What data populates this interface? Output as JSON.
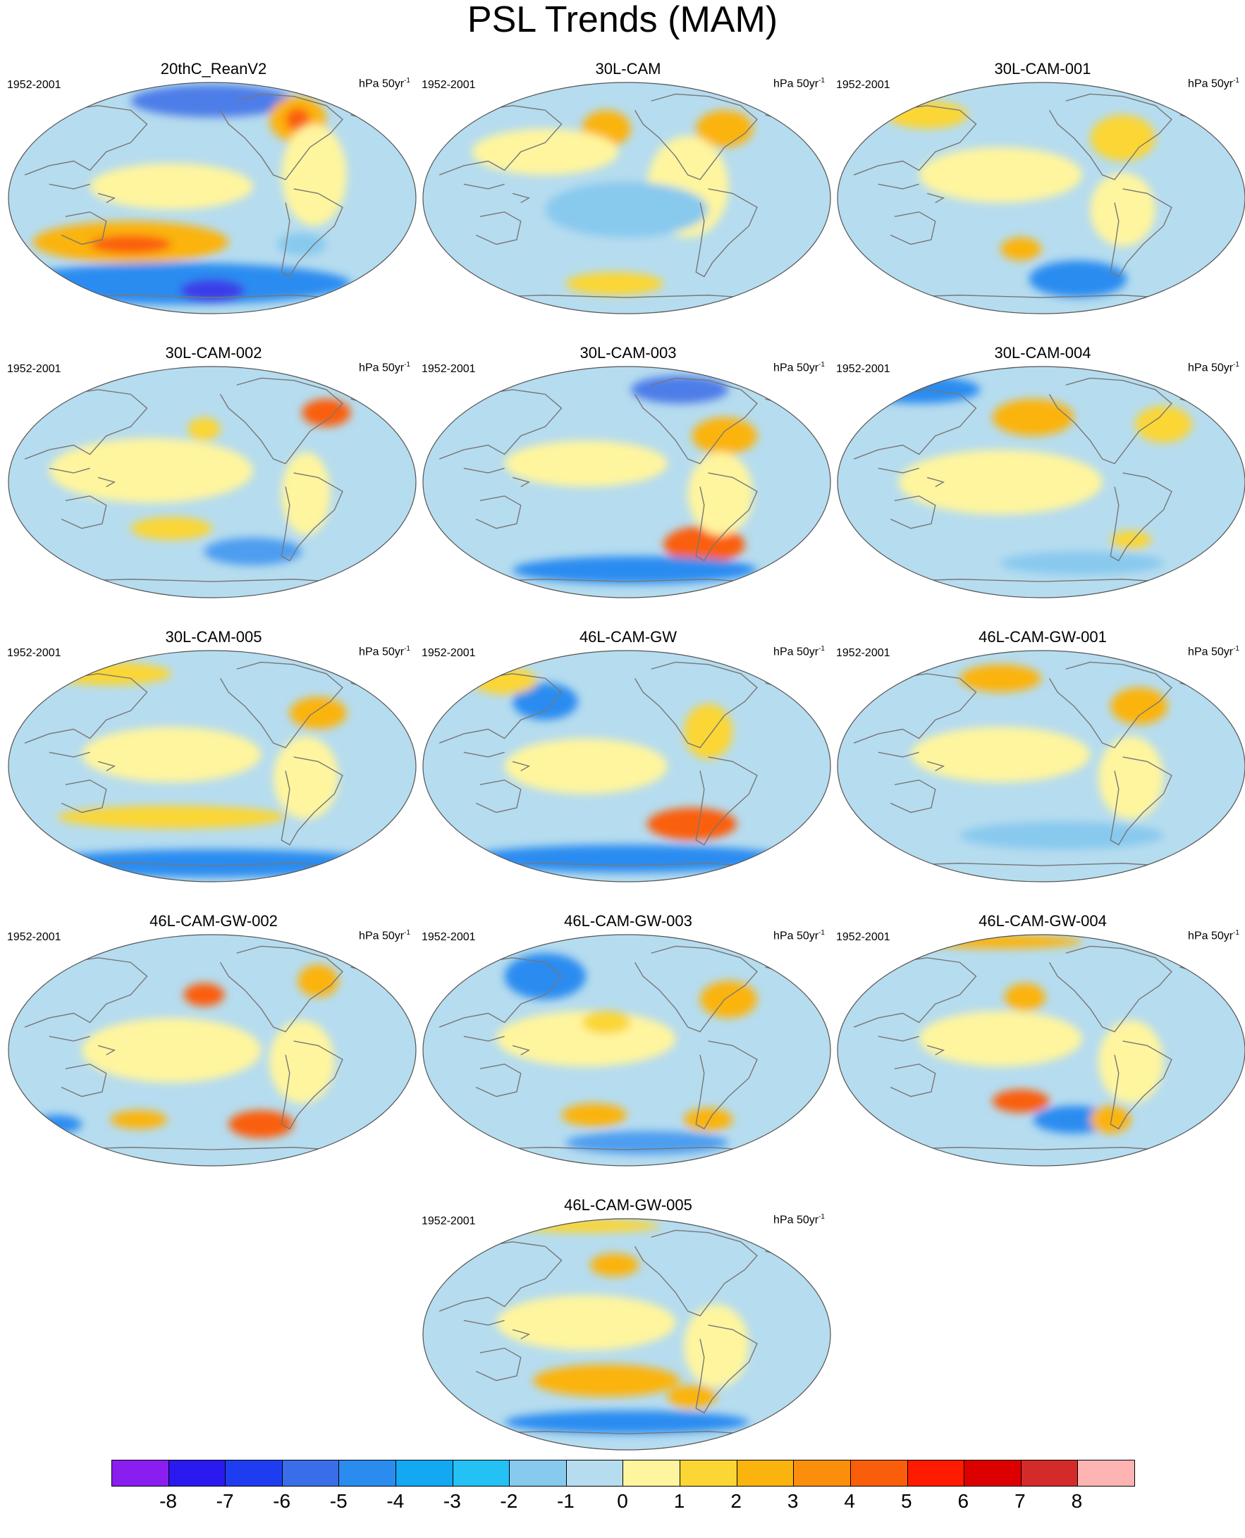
{
  "title": "PSL Trends (MAM)",
  "period": "1952-2001",
  "units_base": "hPa 50yr",
  "units_exp": "-1",
  "colors": {
    "ocean_base": "#b6dcef",
    "coast": "#777777",
    "frame": "#555555"
  },
  "colorbar": {
    "boxes": [
      "#8a1ef0",
      "#2a1aef",
      "#1f3df0",
      "#3a6ee8",
      "#2b8cf0",
      "#12a8f2",
      "#24c1f4",
      "#88c9ee",
      "#b6dcef",
      "#fff59e",
      "#fbd634",
      "#fbb40e",
      "#fb8f0c",
      "#fa5e0a",
      "#ff1b00",
      "#dd0000",
      "#d42a2a",
      "#ffb4b4"
    ],
    "labels": [
      "-8",
      "-7",
      "-6",
      "-5",
      "-4",
      "-3",
      "-2",
      "-1",
      "0",
      "1",
      "2",
      "3",
      "4",
      "5",
      "6",
      "7",
      "8"
    ]
  },
  "panels": [
    {
      "title": "20thC_ReanV2"
    },
    {
      "title": "30L-CAM"
    },
    {
      "title": "30L-CAM-001"
    },
    {
      "title": "30L-CAM-002"
    },
    {
      "title": "30L-CAM-003"
    },
    {
      "title": "30L-CAM-004"
    },
    {
      "title": "30L-CAM-005"
    },
    {
      "title": "46L-CAM-GW"
    },
    {
      "title": "46L-CAM-GW-001"
    },
    {
      "title": "46L-CAM-GW-002"
    },
    {
      "title": "46L-CAM-GW-003"
    },
    {
      "title": "46L-CAM-GW-004"
    },
    {
      "title": "46L-CAM-GW-005"
    }
  ],
  "anomaly_fields": [
    [
      [
        "#4d7de8",
        0.5,
        0.08,
        0.2,
        0.07
      ],
      [
        "#fbb40e",
        0.71,
        0.16,
        0.07,
        0.1
      ],
      [
        "#fa5e0a",
        0.71,
        0.16,
        0.03,
        0.05
      ],
      [
        "#fbb40e",
        0.3,
        0.69,
        0.24,
        0.09
      ],
      [
        "#fa5e0a",
        0.3,
        0.7,
        0.1,
        0.04
      ],
      [
        "#2b8cf0",
        0.42,
        0.87,
        0.42,
        0.09
      ],
      [
        "#3a3ee8",
        0.5,
        0.9,
        0.08,
        0.05
      ],
      [
        "#88c9ee",
        0.72,
        0.7,
        0.06,
        0.05
      ],
      [
        "#fff59e",
        0.4,
        0.45,
        0.2,
        0.1
      ],
      [
        "#fff59e",
        0.75,
        0.4,
        0.08,
        0.22
      ]
    ],
    [
      [
        "#fbb40e",
        0.74,
        0.2,
        0.07,
        0.08
      ],
      [
        "#fbb40e",
        0.45,
        0.2,
        0.06,
        0.08
      ],
      [
        "#fff59e",
        0.65,
        0.45,
        0.1,
        0.22
      ],
      [
        "#fbd634",
        0.47,
        0.87,
        0.12,
        0.05
      ],
      [
        "#fff59e",
        0.3,
        0.3,
        0.18,
        0.1
      ],
      [
        "#88c9ee",
        0.5,
        0.55,
        0.2,
        0.12
      ]
    ],
    [
      [
        "#fbd634",
        0.7,
        0.24,
        0.08,
        0.1
      ],
      [
        "#fbd634",
        0.22,
        0.14,
        0.1,
        0.06
      ],
      [
        "#2b8cf0",
        0.59,
        0.85,
        0.12,
        0.08
      ],
      [
        "#fbb40e",
        0.45,
        0.72,
        0.05,
        0.05
      ],
      [
        "#fff59e",
        0.4,
        0.4,
        0.2,
        0.12
      ],
      [
        "#fff59e",
        0.7,
        0.55,
        0.08,
        0.16
      ]
    ],
    [
      [
        "#fa5e0a",
        0.78,
        0.2,
        0.06,
        0.06
      ],
      [
        "#fbd634",
        0.48,
        0.27,
        0.04,
        0.05
      ],
      [
        "#fbd634",
        0.4,
        0.7,
        0.1,
        0.05
      ],
      [
        "#fff59e",
        0.35,
        0.45,
        0.25,
        0.14
      ],
      [
        "#4d9df0",
        0.6,
        0.8,
        0.12,
        0.06
      ],
      [
        "#fff59e",
        0.73,
        0.55,
        0.06,
        0.18
      ]
    ],
    [
      [
        "#fa5e0a",
        0.69,
        0.77,
        0.1,
        0.08
      ],
      [
        "#fbb40e",
        0.74,
        0.3,
        0.08,
        0.08
      ],
      [
        "#2b8cf0",
        0.52,
        0.88,
        0.3,
        0.06
      ],
      [
        "#4d7de8",
        0.63,
        0.1,
        0.12,
        0.06
      ],
      [
        "#fff59e",
        0.4,
        0.42,
        0.2,
        0.1
      ],
      [
        "#fff59e",
        0.73,
        0.55,
        0.08,
        0.18
      ]
    ],
    [
      [
        "#fbb40e",
        0.48,
        0.22,
        0.1,
        0.08
      ],
      [
        "#2b8cf0",
        0.2,
        0.1,
        0.15,
        0.06
      ],
      [
        "#fbd634",
        0.8,
        0.25,
        0.07,
        0.08
      ],
      [
        "#fff59e",
        0.4,
        0.5,
        0.25,
        0.14
      ],
      [
        "#fbd634",
        0.72,
        0.75,
        0.05,
        0.04
      ],
      [
        "#88c9ee",
        0.6,
        0.85,
        0.2,
        0.05
      ]
    ],
    [
      [
        "#fbd634",
        0.25,
        0.1,
        0.15,
        0.05
      ],
      [
        "#fbb40e",
        0.76,
        0.27,
        0.07,
        0.07
      ],
      [
        "#fbd634",
        0.4,
        0.72,
        0.28,
        0.05
      ],
      [
        "#2b8cf0",
        0.5,
        0.92,
        0.44,
        0.06
      ],
      [
        "#fff59e",
        0.4,
        0.45,
        0.22,
        0.12
      ],
      [
        "#fff59e",
        0.73,
        0.55,
        0.08,
        0.18
      ]
    ],
    [
      [
        "#2b8cf0",
        0.3,
        0.22,
        0.08,
        0.08
      ],
      [
        "#fa5e0a",
        0.66,
        0.75,
        0.11,
        0.07
      ],
      [
        "#fbd634",
        0.7,
        0.35,
        0.06,
        0.12
      ],
      [
        "#2b8cf0",
        0.5,
        0.9,
        0.4,
        0.06
      ],
      [
        "#fbd634",
        0.2,
        0.13,
        0.08,
        0.06
      ],
      [
        "#fff59e",
        0.4,
        0.5,
        0.2,
        0.12
      ]
    ],
    [
      [
        "#fbb40e",
        0.4,
        0.12,
        0.1,
        0.06
      ],
      [
        "#fbb40e",
        0.74,
        0.24,
        0.07,
        0.08
      ],
      [
        "#fff59e",
        0.4,
        0.45,
        0.22,
        0.12
      ],
      [
        "#88c9ee",
        0.55,
        0.8,
        0.25,
        0.06
      ],
      [
        "#fff59e",
        0.72,
        0.55,
        0.08,
        0.18
      ]
    ],
    [
      [
        "#fa5e0a",
        0.48,
        0.26,
        0.05,
        0.05
      ],
      [
        "#fbb40e",
        0.76,
        0.2,
        0.05,
        0.07
      ],
      [
        "#fbb40e",
        0.32,
        0.8,
        0.07,
        0.04
      ],
      [
        "#fa5e0a",
        0.62,
        0.82,
        0.08,
        0.06
      ],
      [
        "#2b8cf0",
        0.12,
        0.82,
        0.06,
        0.04
      ],
      [
        "#fff59e",
        0.4,
        0.5,
        0.22,
        0.14
      ],
      [
        "#fff59e",
        0.72,
        0.55,
        0.08,
        0.18
      ]
    ],
    [
      [
        "#2b8cf0",
        0.3,
        0.18,
        0.1,
        0.1
      ],
      [
        "#fbb40e",
        0.75,
        0.28,
        0.07,
        0.08
      ],
      [
        "#fbb40e",
        0.42,
        0.78,
        0.08,
        0.05
      ],
      [
        "#fbb40e",
        0.7,
        0.8,
        0.06,
        0.05
      ],
      [
        "#4d9df0",
        0.55,
        0.9,
        0.2,
        0.05
      ],
      [
        "#fff59e",
        0.4,
        0.45,
        0.22,
        0.12
      ],
      [
        "#fbd634",
        0.45,
        0.38,
        0.06,
        0.05
      ]
    ],
    [
      [
        "#fbb40e",
        0.46,
        0.27,
        0.05,
        0.06
      ],
      [
        "#fa5e0a",
        0.45,
        0.72,
        0.07,
        0.05
      ],
      [
        "#2b8cf0",
        0.58,
        0.8,
        0.1,
        0.06
      ],
      [
        "#fbb40e",
        0.67,
        0.8,
        0.05,
        0.06
      ],
      [
        "#fbb40e",
        0.4,
        0.03,
        0.2,
        0.03
      ],
      [
        "#fff59e",
        0.4,
        0.45,
        0.2,
        0.12
      ],
      [
        "#fff59e",
        0.72,
        0.55,
        0.08,
        0.18
      ]
    ],
    [
      [
        "#fbd634",
        0.4,
        0.03,
        0.18,
        0.03
      ],
      [
        "#fbb40e",
        0.47,
        0.2,
        0.06,
        0.05
      ],
      [
        "#fbb40e",
        0.45,
        0.7,
        0.18,
        0.07
      ],
      [
        "#fbb40e",
        0.66,
        0.77,
        0.06,
        0.05
      ],
      [
        "#2b8cf0",
        0.5,
        0.88,
        0.3,
        0.05
      ],
      [
        "#fff59e",
        0.4,
        0.45,
        0.22,
        0.12
      ],
      [
        "#fff59e",
        0.72,
        0.55,
        0.08,
        0.18
      ]
    ]
  ]
}
